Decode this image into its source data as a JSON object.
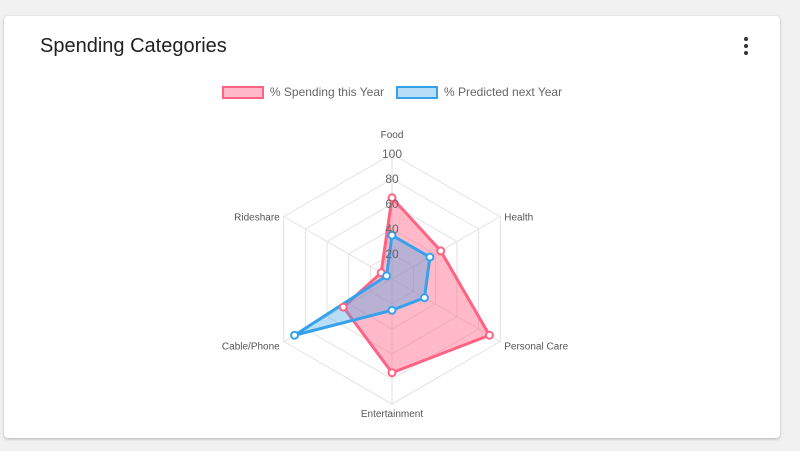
{
  "card": {
    "title": "Spending Categories",
    "menu_icon": "more-vert-icon"
  },
  "colors": {
    "series1_line": "#ff6384",
    "series1_fill": "rgba(255,99,132,0.45)",
    "series2_line": "#36a2eb",
    "series2_fill": "rgba(54,162,235,0.35)",
    "grid": "#e2e2e2"
  },
  "chart_data": {
    "type": "radar",
    "categories": [
      "Food",
      "Health",
      "Personal Care",
      "Entertainment",
      "Cable/Phone",
      "Rideshare"
    ],
    "rmin": 0,
    "rmax": 100,
    "ticks": [
      20,
      40,
      60,
      80,
      100
    ],
    "grid": true,
    "legend_position": "top",
    "series": [
      {
        "name": "% Spending this Year",
        "values": [
          65,
          45,
          90,
          75,
          45,
          10
        ]
      },
      {
        "name": "% Predicted next Year",
        "values": [
          35,
          35,
          30,
          25,
          90,
          5
        ]
      }
    ]
  }
}
